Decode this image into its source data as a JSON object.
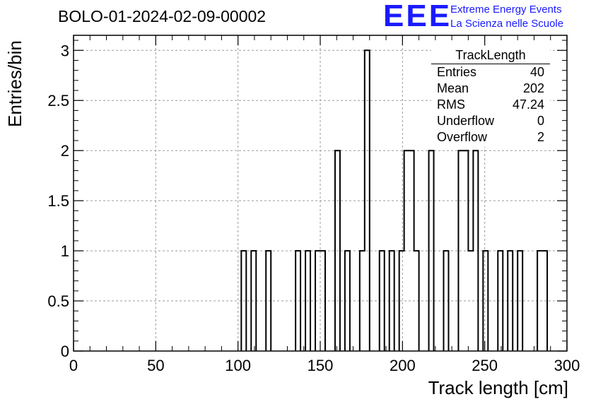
{
  "header": {
    "run_title": "BOLO-01-2024-02-09-00002"
  },
  "logo": {
    "mark": "EEE",
    "line1": "Extreme Energy Events",
    "line2": "La Scienza nelle Scuole"
  },
  "stats": {
    "title": "TrackLength",
    "rows": [
      {
        "label": "Entries",
        "value": "40"
      },
      {
        "label": "Mean",
        "value": "202"
      },
      {
        "label": "RMS",
        "value": "47.24"
      },
      {
        "label": "Underflow",
        "value": "0"
      },
      {
        "label": "Overflow",
        "value": "2"
      }
    ]
  },
  "chart_data": {
    "type": "bar",
    "title": "BOLO-01-2024-02-09-00002",
    "xlabel": "Track length [cm]",
    "ylabel": "Entries/bin",
    "xlim": [
      0,
      300
    ],
    "ylim": [
      0,
      3.15
    ],
    "grid": true,
    "x_ticks": [
      "0",
      "50",
      "100",
      "150",
      "200",
      "250",
      "300"
    ],
    "y_ticks": [
      "0",
      "0.5",
      "1",
      "1.5",
      "2",
      "2.5",
      "3"
    ],
    "x_tick_values": [
      0,
      50,
      100,
      150,
      200,
      250,
      300
    ],
    "y_tick_values": [
      0,
      0.5,
      1,
      1.5,
      2,
      2.5,
      3
    ],
    "bin_width": 3,
    "bins": [
      {
        "x": 102,
        "count": 1
      },
      {
        "x": 108,
        "count": 1
      },
      {
        "x": 117,
        "count": 1
      },
      {
        "x": 135,
        "count": 1
      },
      {
        "x": 141,
        "count": 1
      },
      {
        "x": 147,
        "count": 1
      },
      {
        "x": 150,
        "count": 1
      },
      {
        "x": 159,
        "count": 2
      },
      {
        "x": 165,
        "count": 1
      },
      {
        "x": 174,
        "count": 1
      },
      {
        "x": 177,
        "count": 3
      },
      {
        "x": 186,
        "count": 1
      },
      {
        "x": 192,
        "count": 1
      },
      {
        "x": 198,
        "count": 1
      },
      {
        "x": 201,
        "count": 2
      },
      {
        "x": 204,
        "count": 2
      },
      {
        "x": 207,
        "count": 1
      },
      {
        "x": 216,
        "count": 2
      },
      {
        "x": 225,
        "count": 1
      },
      {
        "x": 234,
        "count": 2
      },
      {
        "x": 237,
        "count": 2
      },
      {
        "x": 240,
        "count": 1
      },
      {
        "x": 243,
        "count": 2
      },
      {
        "x": 249,
        "count": 1
      },
      {
        "x": 258,
        "count": 1
      },
      {
        "x": 264,
        "count": 1
      },
      {
        "x": 270,
        "count": 1
      },
      {
        "x": 282,
        "count": 1
      },
      {
        "x": 285,
        "count": 1
      }
    ],
    "line_color": "#000000",
    "grid_color": "#9a9a9a"
  }
}
